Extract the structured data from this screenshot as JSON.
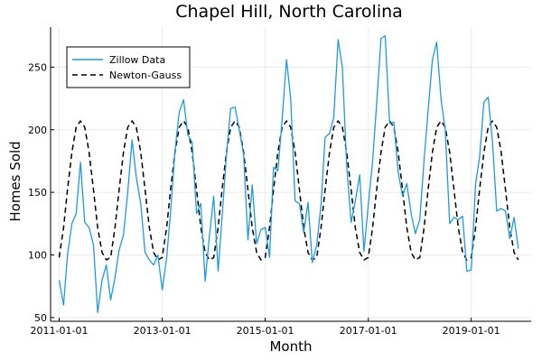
{
  "chart_data": {
    "type": "line",
    "title": "Chapel Hill, North Carolina",
    "xlabel": "Month",
    "ylabel": "Homes Sold",
    "x_ticks": [
      "2011-01-01",
      "2013-01-01",
      "2015-01-01",
      "2017-01-01",
      "2019-01-01"
    ],
    "y_ticks": [
      50,
      100,
      150,
      200,
      250
    ],
    "xlim": [
      "2010-11-01",
      "2020-03-01"
    ],
    "ylim": [
      47,
      282
    ],
    "grid": true,
    "legend_position": "top-left",
    "x": [
      "2011-01",
      "2011-02",
      "2011-03",
      "2011-04",
      "2011-05",
      "2011-06",
      "2011-07",
      "2011-08",
      "2011-09",
      "2011-10",
      "2011-11",
      "2011-12",
      "2012-01",
      "2012-02",
      "2012-03",
      "2012-04",
      "2012-05",
      "2012-06",
      "2012-07",
      "2012-08",
      "2012-09",
      "2012-10",
      "2012-11",
      "2012-12",
      "2013-01",
      "2013-02",
      "2013-03",
      "2013-04",
      "2013-05",
      "2013-06",
      "2013-07",
      "2013-08",
      "2013-09",
      "2013-10",
      "2013-11",
      "2013-12",
      "2014-01",
      "2014-02",
      "2014-03",
      "2014-04",
      "2014-05",
      "2014-06",
      "2014-07",
      "2014-08",
      "2014-09",
      "2014-10",
      "2014-11",
      "2014-12",
      "2015-01",
      "2015-02",
      "2015-03",
      "2015-04",
      "2015-05",
      "2015-06",
      "2015-07",
      "2015-08",
      "2015-09",
      "2015-10",
      "2015-11",
      "2015-12",
      "2016-01",
      "2016-02",
      "2016-03",
      "2016-04",
      "2016-05",
      "2016-06",
      "2016-07",
      "2016-08",
      "2016-09",
      "2016-10",
      "2016-11",
      "2016-12",
      "2017-01",
      "2017-02",
      "2017-03",
      "2017-04",
      "2017-05",
      "2017-06",
      "2017-07",
      "2017-08",
      "2017-09",
      "2017-10",
      "2017-11",
      "2017-12",
      "2018-01",
      "2018-02",
      "2018-03",
      "2018-04",
      "2018-05",
      "2018-06",
      "2018-07",
      "2018-08",
      "2018-09",
      "2018-10",
      "2018-11",
      "2018-12",
      "2019-01",
      "2019-02",
      "2019-03",
      "2019-04",
      "2019-05",
      "2019-06",
      "2019-07",
      "2019-08",
      "2019-09",
      "2019-10",
      "2019-11",
      "2019-12"
    ],
    "series": [
      {
        "name": "Zillow Data",
        "color": "#1f9bdc",
        "style": "solid",
        "values": [
          80,
          60,
          100,
          125,
          133,
          174,
          126,
          122,
          108,
          54,
          80,
          92,
          64,
          82,
          104,
          116,
          150,
          192,
          162,
          141,
          102,
          96,
          92,
          100,
          72,
          98,
          134,
          183,
          214,
          224,
          196,
          190,
          133,
          141,
          79,
          115,
          147,
          87,
          130,
          180,
          217,
          218,
          200,
          180,
          112,
          156,
          109,
          120,
          122,
          98,
          170,
          167,
          208,
          256,
          225,
          143,
          141,
          118,
          142,
          94,
          108,
          140,
          194,
          197,
          210,
          272,
          250,
          171,
          126,
          143,
          164,
          103,
          140,
          175,
          220,
          273,
          275,
          205,
          206,
          166,
          147,
          157,
          133,
          117,
          128,
          176,
          215,
          256,
          270,
          224,
          200,
          125,
          130,
          128,
          131,
          87,
          88,
          157,
          178,
          222,
          226,
          190,
          135,
          137,
          135,
          113,
          130,
          105
        ]
      },
      {
        "name": "Newton-Gauss",
        "color": "#000000",
        "style": "dashed",
        "values": [
          98,
          122,
          152,
          182,
          202,
          207,
          202,
          182,
          152,
          122,
          102,
          96,
          98,
          122,
          152,
          182,
          202,
          207,
          202,
          182,
          152,
          122,
          102,
          96,
          98,
          122,
          152,
          182,
          202,
          207,
          202,
          182,
          152,
          122,
          102,
          96,
          98,
          122,
          152,
          182,
          202,
          207,
          202,
          182,
          152,
          122,
          102,
          96,
          98,
          122,
          152,
          182,
          202,
          207,
          202,
          182,
          152,
          122,
          102,
          96,
          98,
          122,
          152,
          182,
          202,
          207,
          202,
          182,
          152,
          122,
          102,
          96,
          98,
          122,
          152,
          182,
          202,
          207,
          202,
          182,
          152,
          122,
          102,
          96,
          98,
          122,
          152,
          182,
          202,
          207,
          202,
          182,
          152,
          122,
          102,
          96,
          98,
          122,
          152,
          182,
          202,
          207,
          202,
          182,
          152,
          122,
          102,
          96
        ]
      }
    ]
  }
}
